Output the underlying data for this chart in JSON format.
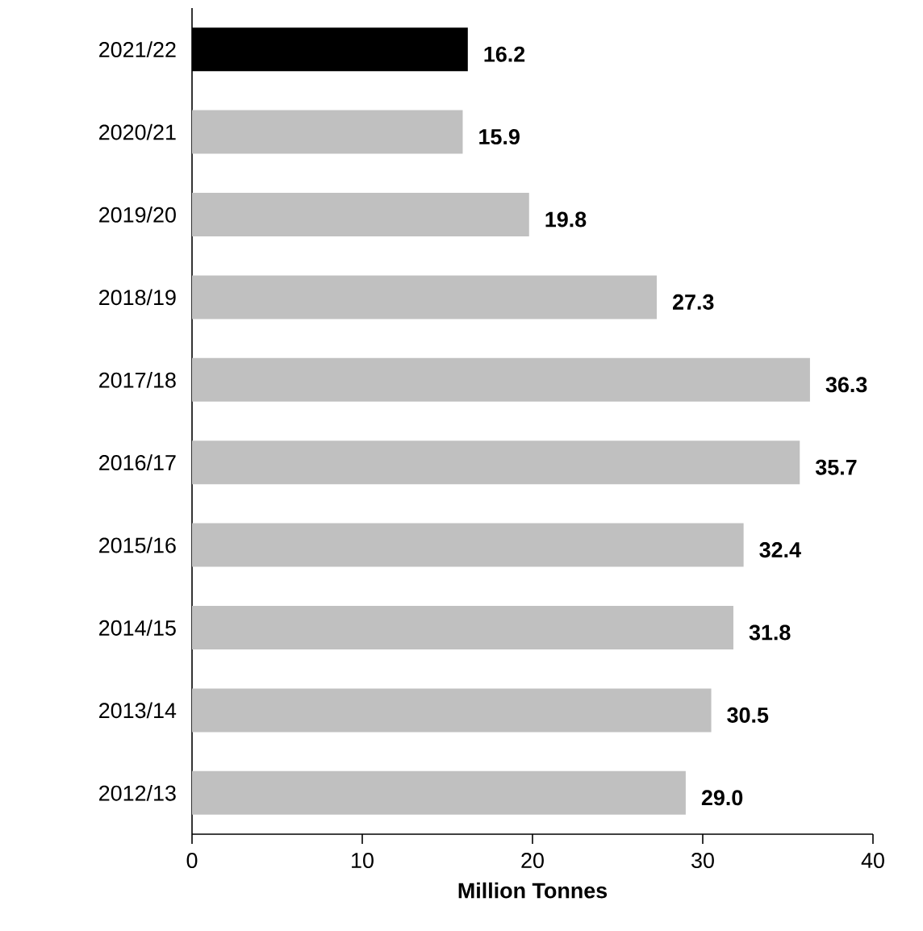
{
  "chart_data": {
    "type": "bar",
    "orientation": "horizontal",
    "xlabel": "Million Tonnes",
    "categories": [
      "2021/22",
      "2020/21",
      "2019/20",
      "2018/19",
      "2017/18",
      "2016/17",
      "2015/16",
      "2014/15",
      "2013/14",
      "2012/13"
    ],
    "values": [
      16.2,
      15.9,
      19.8,
      27.3,
      36.3,
      35.7,
      32.4,
      31.8,
      30.5,
      29.0
    ],
    "value_labels": [
      "16.2",
      "15.9",
      "19.8",
      "27.3",
      "36.3",
      "35.7",
      "32.4",
      "31.8",
      "30.5",
      "29.0"
    ],
    "colors": [
      "#000000",
      "#c0c0c0",
      "#c0c0c0",
      "#c0c0c0",
      "#c0c0c0",
      "#c0c0c0",
      "#c0c0c0",
      "#c0c0c0",
      "#c0c0c0",
      "#c0c0c0"
    ],
    "xlim": [
      0,
      40
    ],
    "xticks": [
      0,
      10,
      20,
      30,
      40
    ],
    "grid": false
  }
}
